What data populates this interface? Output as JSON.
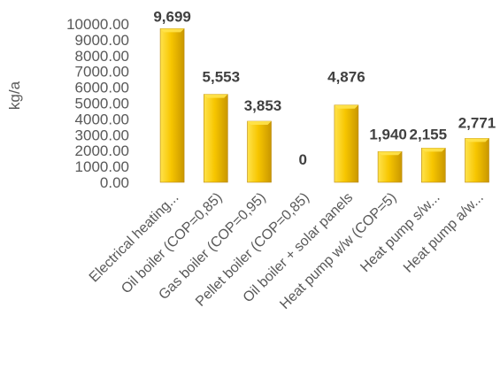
{
  "chart_data": {
    "type": "bar",
    "title": "",
    "xlabel": "",
    "ylabel": "kg/a",
    "ylim": [
      0,
      10000
    ],
    "ytick_step": 1000,
    "ytick_labels": [
      "0.00",
      "1000.00",
      "2000.00",
      "3000.00",
      "4000.00",
      "5000.00",
      "6000.00",
      "7000.00",
      "8000.00",
      "9000.00",
      "10000.00"
    ],
    "grid": false,
    "legend": "none",
    "categories": [
      "Electrical heating...",
      "Oil boiler (COP=0,85)",
      "Gas boiler (COP=0,95)",
      "Pellet boiler (COP=0,85)",
      "Oil boiler + solar panels",
      "Heat pump w/w (COP=5)",
      "Heat pump s/w...",
      "Heat pump a/w..."
    ],
    "values": [
      9699,
      5553,
      3853,
      0,
      4876,
      1940,
      2155,
      2771
    ],
    "data_labels": [
      "9,699",
      "5,553",
      "3,853",
      "0",
      "4,876",
      "1,940",
      "2,155",
      "2,771"
    ],
    "colors": {
      "bar_light": "#FFE34D",
      "bar_mid": "#F7C600",
      "bar_dark": "#C99700",
      "bar_edge": "#B8860B"
    }
  }
}
